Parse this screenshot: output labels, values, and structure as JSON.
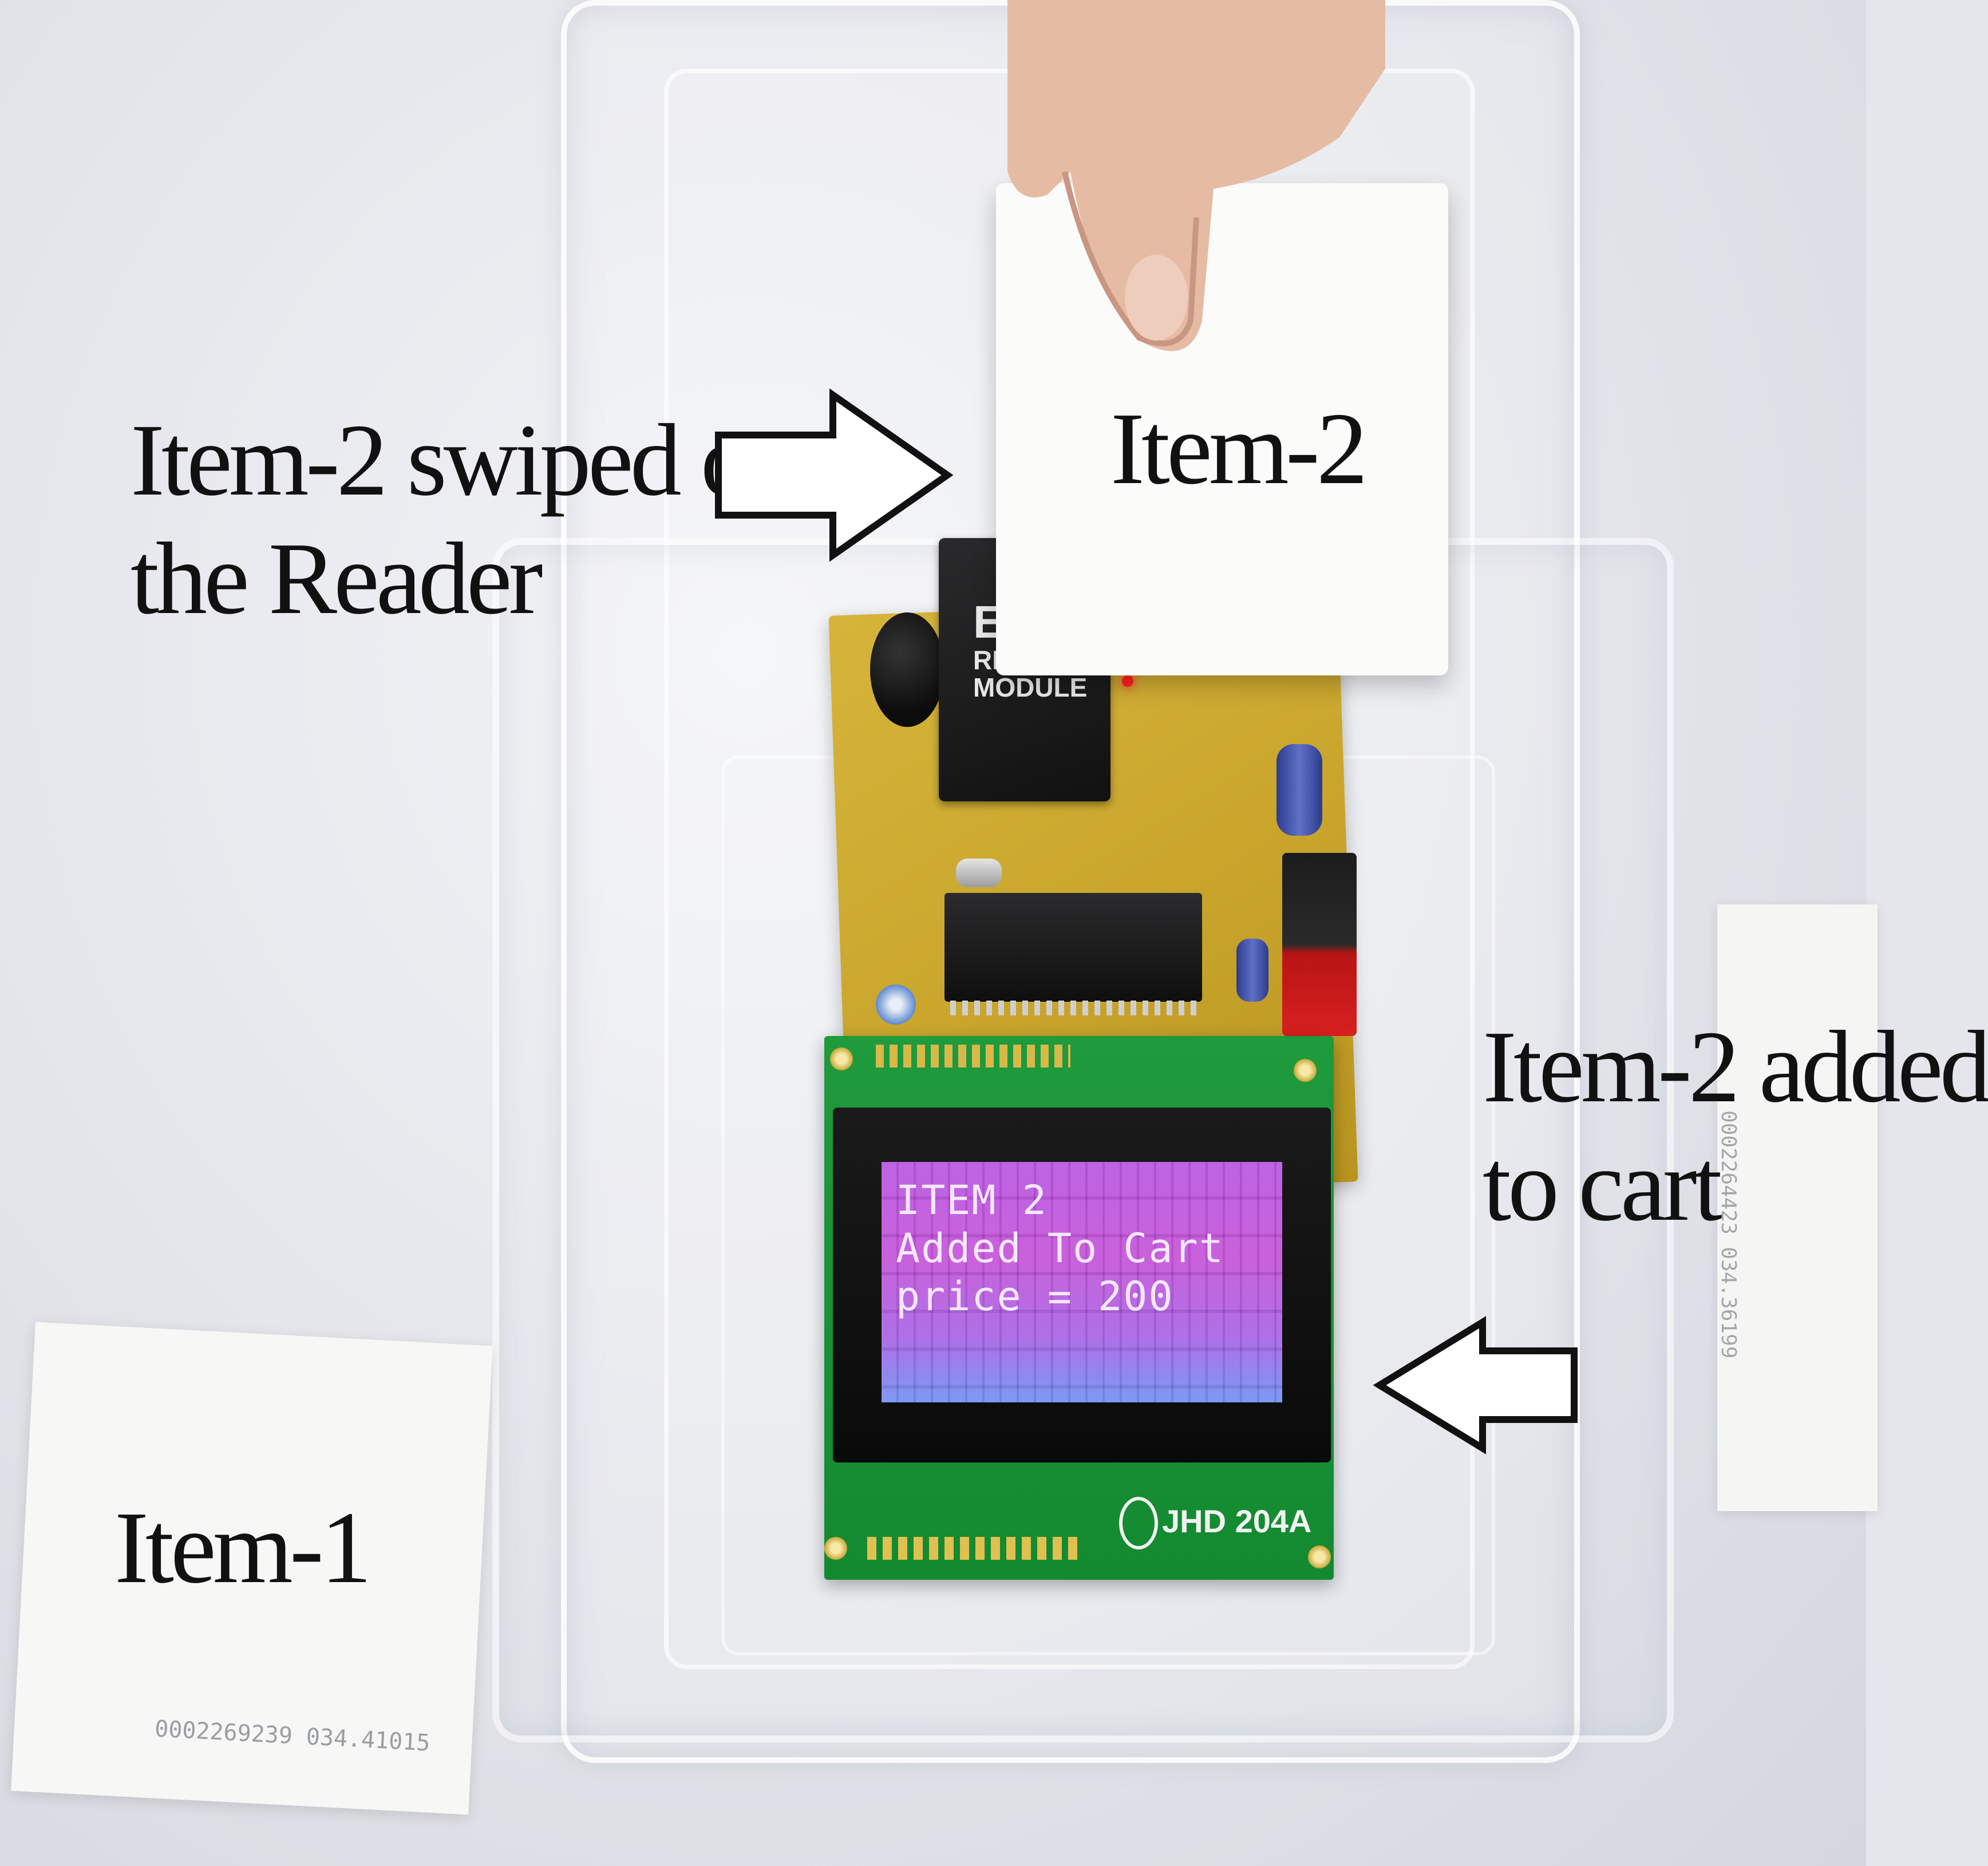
{
  "annotations": {
    "swiped_line1": "Item-2 swiped over",
    "swiped_line2": "the Reader",
    "added_line1": "Item-2 added",
    "added_line2": "to cart",
    "card_item2": "Item-2",
    "card_item1": "Item-1"
  },
  "lcd": {
    "line1": "ITEM 2",
    "line2": "Added To Cart",
    "line3": "price = 200",
    "model": "JHD 204A"
  },
  "module_label": {
    "line1": "EM",
    "line2": "RE",
    "line3": "MODULE"
  },
  "card_serials": {
    "item1": "0002269239 034.41015",
    "right_card": "0002264423 034.36199"
  },
  "colors": {
    "pcb": "#c9a52c",
    "lcd_board": "#1a9436",
    "lcd_backlight": "#b44de0",
    "annotation_text": "#111111"
  }
}
